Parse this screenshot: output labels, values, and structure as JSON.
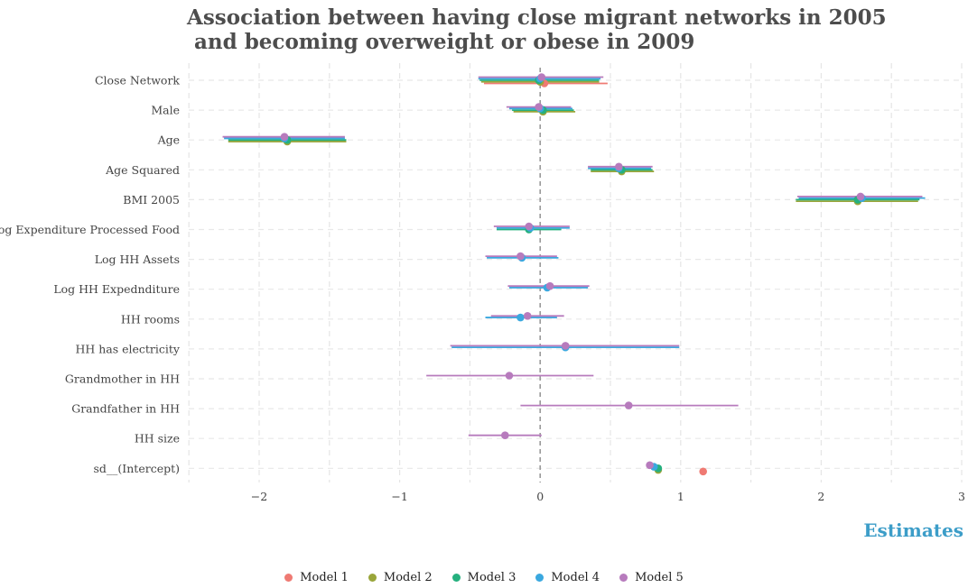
{
  "chart_data": {
    "type": "dot-whisker",
    "title": "Association between having close migrant networks in 2005\n and becoming overweight or obese in 2009",
    "xlabel": "Estimates",
    "ylabel": "",
    "xlim": [
      -2.5,
      3
    ],
    "xticks": [
      -2,
      -1,
      0,
      1,
      2,
      3
    ],
    "xtick_labels": [
      "−2",
      "−1",
      "0",
      "1",
      "2",
      "3"
    ],
    "grid": true,
    "reference_line": 0,
    "legend_position": "bottom",
    "categories": [
      "Close Network",
      "Male",
      "Age",
      "Age Squared",
      "BMI 2005",
      "Log Expenditure Processed Food",
      "Log HH Assets",
      "Log HH Expednditure",
      "HH rooms",
      "HH has electricity",
      "Grandmother in HH",
      "Grandfather in HH",
      "HH size",
      "sd__(Intercept)"
    ],
    "series": [
      {
        "name": "Model 1",
        "color": "#ef7a73",
        "points": [
          {
            "term": "Close Network",
            "estimate": 0.03,
            "low": -0.4,
            "high": 0.48
          },
          {
            "term": "sd__(Intercept)",
            "estimate": 1.16
          }
        ]
      },
      {
        "name": "Model 2",
        "color": "#99a53a",
        "points": [
          {
            "term": "Close Network",
            "estimate": 0.0,
            "low": -0.42,
            "high": 0.42
          },
          {
            "term": "Male",
            "estimate": 0.02,
            "low": -0.19,
            "high": 0.25
          },
          {
            "term": "Age",
            "estimate": -1.8,
            "low": -2.22,
            "high": -1.38
          },
          {
            "term": "Age Squared",
            "estimate": 0.58,
            "low": 0.36,
            "high": 0.81
          },
          {
            "term": "BMI 2005",
            "estimate": 2.26,
            "low": 1.82,
            "high": 2.69
          },
          {
            "term": "sd__(Intercept)",
            "estimate": 0.84
          }
        ]
      },
      {
        "name": "Model 3",
        "color": "#25b07e",
        "points": [
          {
            "term": "Close Network",
            "estimate": -0.01,
            "low": -0.43,
            "high": 0.42
          },
          {
            "term": "Male",
            "estimate": 0.02,
            "low": -0.2,
            "high": 0.24
          },
          {
            "term": "Age",
            "estimate": -1.8,
            "low": -2.22,
            "high": -1.38
          },
          {
            "term": "Age Squared",
            "estimate": 0.58,
            "low": 0.36,
            "high": 0.8
          },
          {
            "term": "BMI 2005",
            "estimate": 2.26,
            "low": 1.82,
            "high": 2.7
          },
          {
            "term": "Log Expenditure Processed Food",
            "estimate": -0.08,
            "low": -0.31,
            "high": 0.15
          },
          {
            "term": "sd__(Intercept)",
            "estimate": 0.84
          }
        ]
      },
      {
        "name": "Model 4",
        "color": "#3aa8df",
        "points": [
          {
            "term": "Close Network",
            "estimate": 0.0,
            "low": -0.44,
            "high": 0.43
          },
          {
            "term": "Male",
            "estimate": 0.0,
            "low": -0.22,
            "high": 0.23
          },
          {
            "term": "Age",
            "estimate": -1.82,
            "low": -2.25,
            "high": -1.39
          },
          {
            "term": "Age Squared",
            "estimate": 0.56,
            "low": 0.34,
            "high": 0.79
          },
          {
            "term": "BMI 2005",
            "estimate": 2.29,
            "low": 1.84,
            "high": 2.74
          },
          {
            "term": "Log Expenditure Processed Food",
            "estimate": -0.07,
            "low": -0.31,
            "high": 0.21
          },
          {
            "term": "Log HH Assets",
            "estimate": -0.13,
            "low": -0.38,
            "high": 0.13
          },
          {
            "term": "Log HH Expednditure",
            "estimate": 0.05,
            "low": -0.22,
            "high": 0.34
          },
          {
            "term": "HH rooms",
            "estimate": -0.14,
            "low": -0.39,
            "high": 0.12
          },
          {
            "term": "HH has electricity",
            "estimate": 0.18,
            "low": -0.63,
            "high": 0.99
          },
          {
            "term": "sd__(Intercept)",
            "estimate": 0.81
          }
        ]
      },
      {
        "name": "Model 5",
        "color": "#b77bbd",
        "points": [
          {
            "term": "Close Network",
            "estimate": 0.01,
            "low": -0.44,
            "high": 0.45
          },
          {
            "term": "Male",
            "estimate": -0.01,
            "low": -0.24,
            "high": 0.22
          },
          {
            "term": "Age",
            "estimate": -1.82,
            "low": -2.26,
            "high": -1.39
          },
          {
            "term": "Age Squared",
            "estimate": 0.56,
            "low": 0.34,
            "high": 0.8
          },
          {
            "term": "BMI 2005",
            "estimate": 2.28,
            "low": 1.83,
            "high": 2.72
          },
          {
            "term": "Log Expenditure Processed Food",
            "estimate": -0.08,
            "low": -0.33,
            "high": 0.21
          },
          {
            "term": "Log HH Assets",
            "estimate": -0.14,
            "low": -0.39,
            "high": 0.12
          },
          {
            "term": "Log HH Expednditure",
            "estimate": 0.07,
            "low": -0.23,
            "high": 0.35
          },
          {
            "term": "HH rooms",
            "estimate": -0.09,
            "low": -0.35,
            "high": 0.17
          },
          {
            "term": "HH has electricity",
            "estimate": 0.18,
            "low": -0.64,
            "high": 0.99
          },
          {
            "term": "Grandmother in HH",
            "estimate": -0.22,
            "low": -0.81,
            "high": 0.38
          },
          {
            "term": "Grandfather in HH",
            "estimate": 0.63,
            "low": -0.14,
            "high": 1.41
          },
          {
            "term": "HH size",
            "estimate": -0.25,
            "low": -0.51,
            "high": 0.01
          },
          {
            "term": "sd__(Intercept)",
            "estimate": 0.78
          }
        ]
      }
    ]
  }
}
